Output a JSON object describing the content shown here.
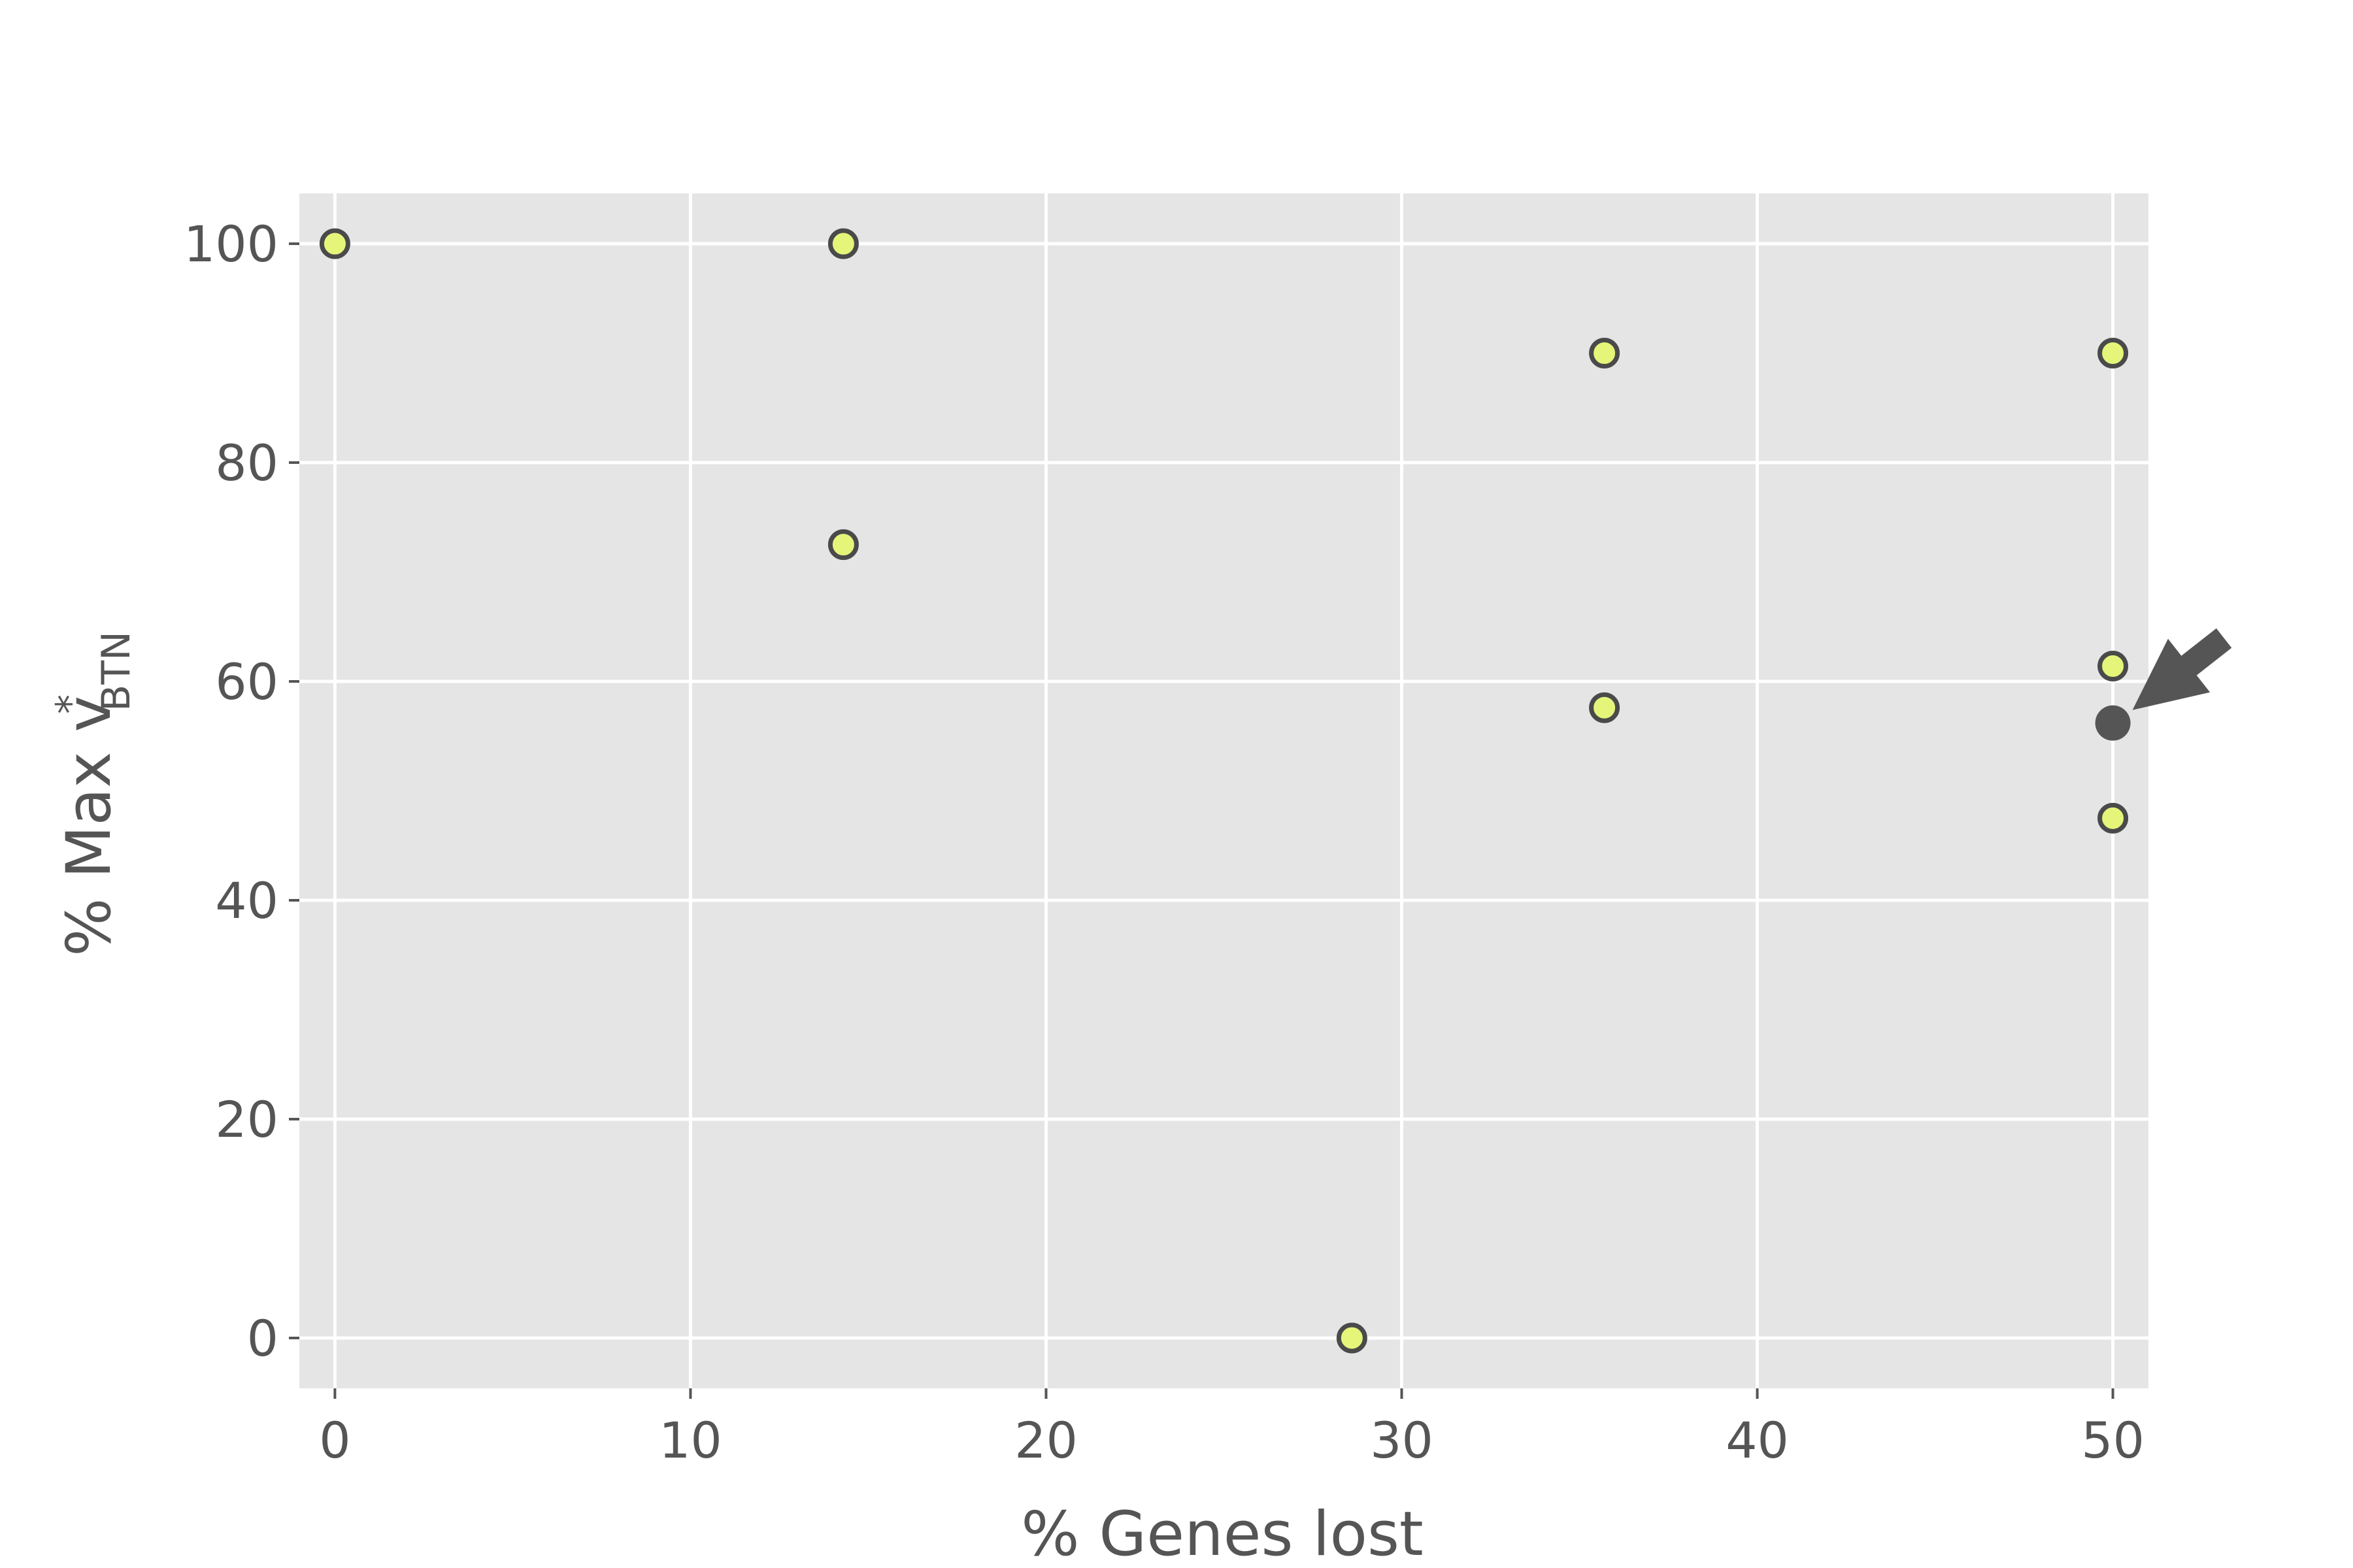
{
  "chart_data": {
    "type": "scatter",
    "xlabel": "% Genes lost",
    "ylabel": {
      "prefix": "% Max v",
      "superscript": "*",
      "subscript": "BTN"
    },
    "xlim": [
      -1,
      51
    ],
    "ylim": [
      -4.6,
      104.6
    ],
    "xticks": [
      0,
      10,
      20,
      30,
      40,
      50
    ],
    "yticks": [
      0,
      20,
      40,
      60,
      80,
      100
    ],
    "grid": true,
    "background": "#e5e5e5",
    "colors": {
      "marker_fill": "#e5f57a",
      "marker_edge": "#4a4a4a",
      "highlight": "#555555",
      "text": "#555555",
      "grid": "#ffffff"
    },
    "points": [
      {
        "x": 0,
        "y": 100
      },
      {
        "x": 14.3,
        "y": 100
      },
      {
        "x": 14.3,
        "y": 72.5
      },
      {
        "x": 28.6,
        "y": 0
      },
      {
        "x": 35.7,
        "y": 90
      },
      {
        "x": 35.7,
        "y": 57.6
      },
      {
        "x": 50,
        "y": 90
      },
      {
        "x": 50,
        "y": 61.4
      },
      {
        "x": 50,
        "y": 47.5
      }
    ],
    "highlight": {
      "x": 50,
      "y": 56.2,
      "annotation": "arrow-pointing-to-point"
    }
  }
}
